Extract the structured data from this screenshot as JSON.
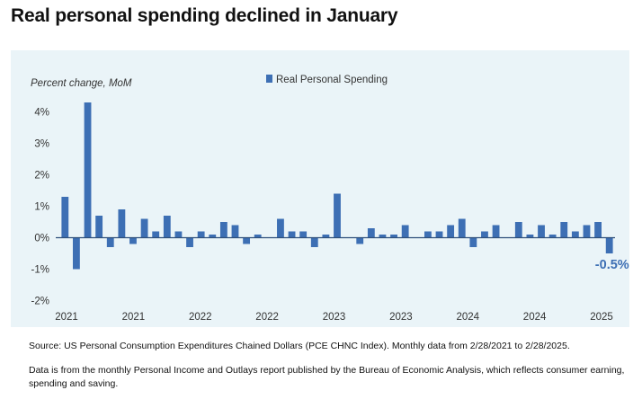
{
  "title": "Real personal spending declined in January",
  "source": "Source: US Personal Consumption Expenditures Chained Dollars (PCE CHNC Index). Monthly data from 2/28/2021 to 2/28/2025.",
  "note": "Data is from the monthly Personal Income and Outlays report published by the Bureau of Economic Analysis, which reflects consumer earning, spending and saving.",
  "colors": {
    "bar": "#3d6fb4",
    "panel": "#eaf4f8",
    "zero_line": "#2f4f7a",
    "callout": "#3d6fb4"
  },
  "chart_data": {
    "type": "bar",
    "ylabel": "Percent change, MoM",
    "legend": {
      "label": "Real Personal Spending",
      "position": "top-center"
    },
    "ylim": [
      -2,
      4.5
    ],
    "yticks": [
      -2,
      -1,
      0,
      1,
      2,
      3,
      4
    ],
    "yticklabels": [
      "-2%",
      "-1%",
      "0%",
      "1%",
      "2%",
      "3%",
      "4%"
    ],
    "xticklabels": [
      "2021",
      "2021",
      "2022",
      "2022",
      "2023",
      "2023",
      "2024",
      "2024",
      "2025"
    ],
    "grid": false,
    "series": [
      {
        "name": "Real Personal Spending",
        "values": [
          1.3,
          -1.0,
          4.3,
          0.7,
          -0.3,
          0.9,
          -0.2,
          0.6,
          0.2,
          0.7,
          0.2,
          -0.3,
          0.2,
          0.1,
          0.5,
          0.4,
          -0.2,
          0.1,
          0.0,
          0.6,
          0.2,
          0.2,
          -0.3,
          0.1,
          1.4,
          0.0,
          -0.2,
          0.3,
          0.1,
          0.1,
          0.4,
          0.0,
          0.2,
          0.2,
          0.4,
          0.6,
          -0.3,
          0.2,
          0.4,
          0.0,
          0.5,
          0.1,
          0.4,
          0.1,
          0.5,
          0.2,
          0.4,
          0.5,
          -0.5
        ]
      }
    ],
    "annotation": {
      "text": "-0.5%",
      "target": "last-bar"
    }
  }
}
